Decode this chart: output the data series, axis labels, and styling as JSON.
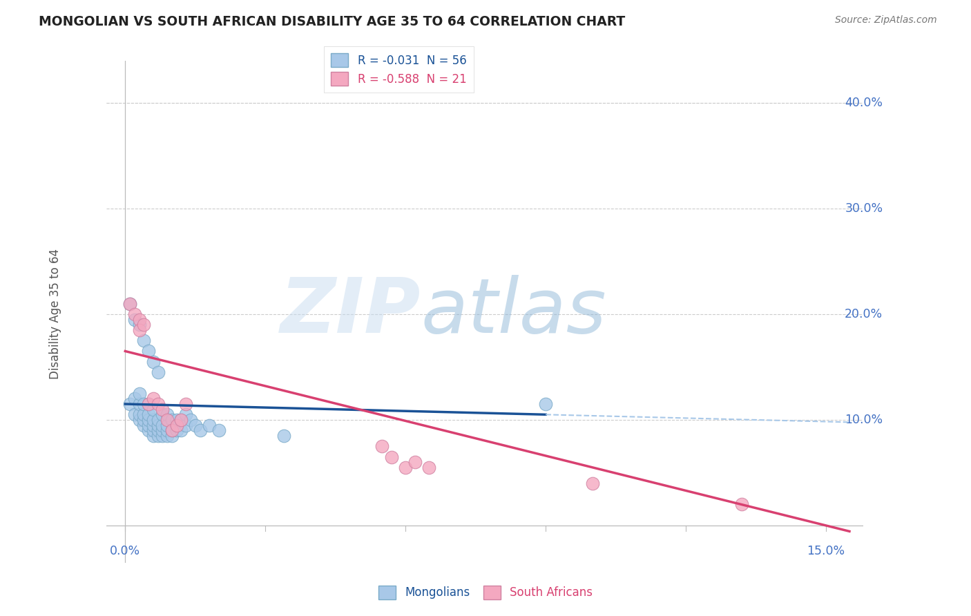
{
  "title": "MONGOLIAN VS SOUTH AFRICAN DISABILITY AGE 35 TO 64 CORRELATION CHART",
  "source": "Source: ZipAtlas.com",
  "ylabel": "Disability Age 35 to 64",
  "mongolian_R": -0.031,
  "mongolian_N": 56,
  "southafrican_R": -0.588,
  "southafrican_N": 21,
  "mongolian_color": "#a8c8e8",
  "southafrican_color": "#f4a8c0",
  "trend_mongolian_color": "#1a5296",
  "trend_southafrican_color": "#d84070",
  "mongolian_x": [
    0.001,
    0.001,
    0.002,
    0.002,
    0.002,
    0.003,
    0.003,
    0.003,
    0.003,
    0.003,
    0.004,
    0.004,
    0.004,
    0.004,
    0.004,
    0.005,
    0.005,
    0.005,
    0.005,
    0.005,
    0.005,
    0.006,
    0.006,
    0.006,
    0.006,
    0.006,
    0.006,
    0.007,
    0.007,
    0.007,
    0.007,
    0.007,
    0.008,
    0.008,
    0.008,
    0.008,
    0.009,
    0.009,
    0.009,
    0.009,
    0.01,
    0.01,
    0.01,
    0.011,
    0.011,
    0.012,
    0.012,
    0.013,
    0.013,
    0.014,
    0.015,
    0.016,
    0.018,
    0.02,
    0.034,
    0.09
  ],
  "mongolian_y": [
    0.115,
    0.21,
    0.105,
    0.12,
    0.195,
    0.1,
    0.105,
    0.115,
    0.125,
    0.19,
    0.095,
    0.1,
    0.105,
    0.115,
    0.175,
    0.09,
    0.095,
    0.1,
    0.105,
    0.115,
    0.165,
    0.085,
    0.09,
    0.095,
    0.1,
    0.11,
    0.155,
    0.085,
    0.09,
    0.095,
    0.1,
    0.145,
    0.085,
    0.09,
    0.095,
    0.105,
    0.085,
    0.09,
    0.095,
    0.105,
    0.085,
    0.09,
    0.1,
    0.09,
    0.1,
    0.09,
    0.1,
    0.095,
    0.105,
    0.1,
    0.095,
    0.09,
    0.095,
    0.09,
    0.085,
    0.115
  ],
  "southafrican_x": [
    0.001,
    0.002,
    0.003,
    0.003,
    0.004,
    0.005,
    0.006,
    0.007,
    0.008,
    0.009,
    0.01,
    0.011,
    0.012,
    0.013,
    0.055,
    0.057,
    0.06,
    0.062,
    0.065,
    0.1,
    0.132
  ],
  "southafrican_y": [
    0.21,
    0.2,
    0.195,
    0.185,
    0.19,
    0.115,
    0.12,
    0.115,
    0.11,
    0.1,
    0.09,
    0.095,
    0.1,
    0.115,
    0.075,
    0.065,
    0.055,
    0.06,
    0.055,
    0.04,
    0.02
  ],
  "xlim": [
    0.0,
    0.15
  ],
  "ylim": [
    0.0,
    0.42
  ],
  "ytick_vals": [
    0.1,
    0.2,
    0.3,
    0.4
  ],
  "ytick_labels": [
    "10.0%",
    "20.0%",
    "30.0%",
    "40.0%"
  ],
  "xtick_left_label": "0.0%",
  "xtick_right_label": "15.0%",
  "watermark_zip": "ZIP",
  "watermark_atlas": "atlas",
  "background_color": "#ffffff",
  "grid_color": "#cccccc",
  "axis_color": "#bbbbbb"
}
